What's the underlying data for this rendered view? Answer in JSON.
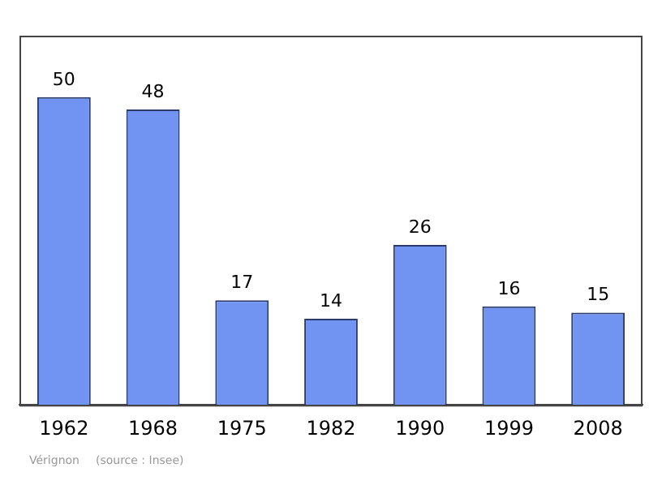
{
  "chart_data": {
    "type": "bar",
    "categories": [
      "1962",
      "1968",
      "1975",
      "1982",
      "1990",
      "1999",
      "2008"
    ],
    "values": [
      50,
      48,
      17,
      14,
      26,
      16,
      15
    ],
    "color": "#7193f2",
    "data_labels": true,
    "grid": false,
    "legend": false,
    "annotations": [
      "Vérignon",
      "(source : Insee)"
    ]
  }
}
